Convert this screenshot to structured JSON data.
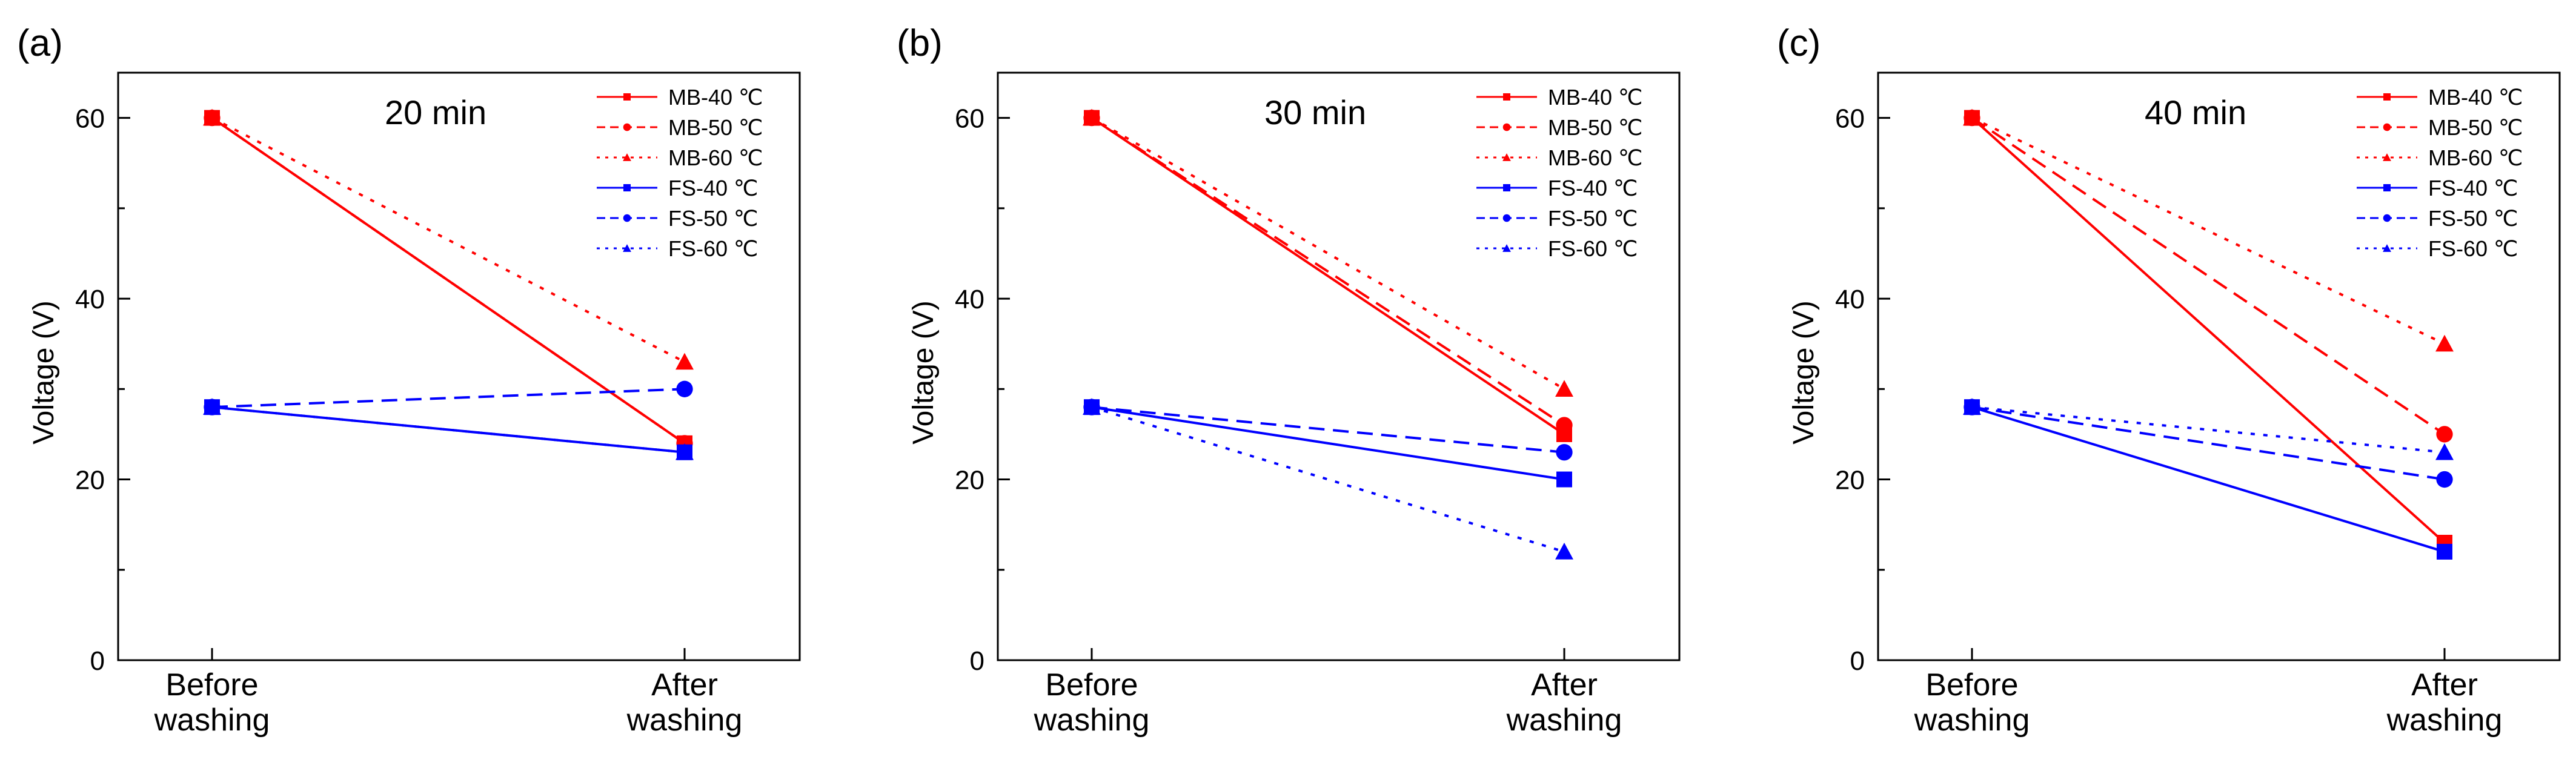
{
  "figure": {
    "panels": [
      {
        "label": "(a)",
        "time_label": "20 min"
      },
      {
        "label": "(b)",
        "time_label": "30 min"
      },
      {
        "label": "(c)",
        "time_label": "40 min"
      }
    ]
  },
  "colors": {
    "red": "#ff0000",
    "blue": "#0000ff",
    "axis": "#000000"
  },
  "chart_data": [
    {
      "type": "line",
      "panel": "(a)",
      "title": "20 min",
      "ylabel": "Voltage (V)",
      "xlabel": "",
      "categories": [
        [
          "Before",
          "washing"
        ],
        [
          "After",
          "washing"
        ]
      ],
      "ylim": [
        0,
        65
      ],
      "yticks": [
        0,
        20,
        40,
        60
      ],
      "grid": false,
      "legend_position": "top-right",
      "series": [
        {
          "name": "MB-40 ℃",
          "color": "red",
          "dash": "solid",
          "marker": "square",
          "values": [
            60,
            24
          ]
        },
        {
          "name": "MB-50 ℃",
          "color": "red",
          "dash": "dashed",
          "marker": "circle",
          "values": [
            60,
            24
          ]
        },
        {
          "name": "MB-60 ℃",
          "color": "red",
          "dash": "dotted",
          "marker": "triangle",
          "values": [
            60,
            33
          ]
        },
        {
          "name": "FS-40 ℃",
          "color": "blue",
          "dash": "solid",
          "marker": "square",
          "values": [
            28,
            23
          ]
        },
        {
          "name": "FS-50 ℃",
          "color": "blue",
          "dash": "dashed",
          "marker": "circle",
          "values": [
            28,
            30
          ]
        },
        {
          "name": "FS-60 ℃",
          "color": "blue",
          "dash": "dotted",
          "marker": "triangle",
          "values": [
            28,
            23
          ]
        }
      ]
    },
    {
      "type": "line",
      "panel": "(b)",
      "title": "30 min",
      "ylabel": "Voltage (V)",
      "xlabel": "",
      "categories": [
        [
          "Before",
          "washing"
        ],
        [
          "After",
          "washing"
        ]
      ],
      "ylim": [
        0,
        65
      ],
      "yticks": [
        0,
        20,
        40,
        60
      ],
      "grid": false,
      "legend_position": "top-right",
      "series": [
        {
          "name": "MB-40 ℃",
          "color": "red",
          "dash": "solid",
          "marker": "square",
          "values": [
            60,
            25
          ]
        },
        {
          "name": "MB-50 ℃",
          "color": "red",
          "dash": "dashed",
          "marker": "circle",
          "values": [
            60,
            26
          ]
        },
        {
          "name": "MB-60 ℃",
          "color": "red",
          "dash": "dotted",
          "marker": "triangle",
          "values": [
            60,
            30
          ]
        },
        {
          "name": "FS-40 ℃",
          "color": "blue",
          "dash": "solid",
          "marker": "square",
          "values": [
            28,
            20
          ]
        },
        {
          "name": "FS-50 ℃",
          "color": "blue",
          "dash": "dashed",
          "marker": "circle",
          "values": [
            28,
            23
          ]
        },
        {
          "name": "FS-60 ℃",
          "color": "blue",
          "dash": "dotted",
          "marker": "triangle",
          "values": [
            28,
            12
          ]
        }
      ]
    },
    {
      "type": "line",
      "panel": "(c)",
      "title": "40 min",
      "ylabel": "Voltage (V)",
      "xlabel": "",
      "categories": [
        [
          "Before",
          "washing"
        ],
        [
          "After",
          "washing"
        ]
      ],
      "ylim": [
        0,
        65
      ],
      "yticks": [
        0,
        20,
        40,
        60
      ],
      "grid": false,
      "legend_position": "top-right",
      "series": [
        {
          "name": "MB-40 ℃",
          "color": "red",
          "dash": "solid",
          "marker": "square",
          "values": [
            60,
            13
          ]
        },
        {
          "name": "MB-50 ℃",
          "color": "red",
          "dash": "dashed",
          "marker": "circle",
          "values": [
            60,
            25
          ]
        },
        {
          "name": "MB-60 ℃",
          "color": "red",
          "dash": "dotted",
          "marker": "triangle",
          "values": [
            60,
            35
          ]
        },
        {
          "name": "FS-40 ℃",
          "color": "blue",
          "dash": "solid",
          "marker": "square",
          "values": [
            28,
            12
          ]
        },
        {
          "name": "FS-50 ℃",
          "color": "blue",
          "dash": "dashed",
          "marker": "circle",
          "values": [
            28,
            20
          ]
        },
        {
          "name": "FS-60 ℃",
          "color": "blue",
          "dash": "dotted",
          "marker": "triangle",
          "values": [
            28,
            23
          ]
        }
      ]
    }
  ]
}
